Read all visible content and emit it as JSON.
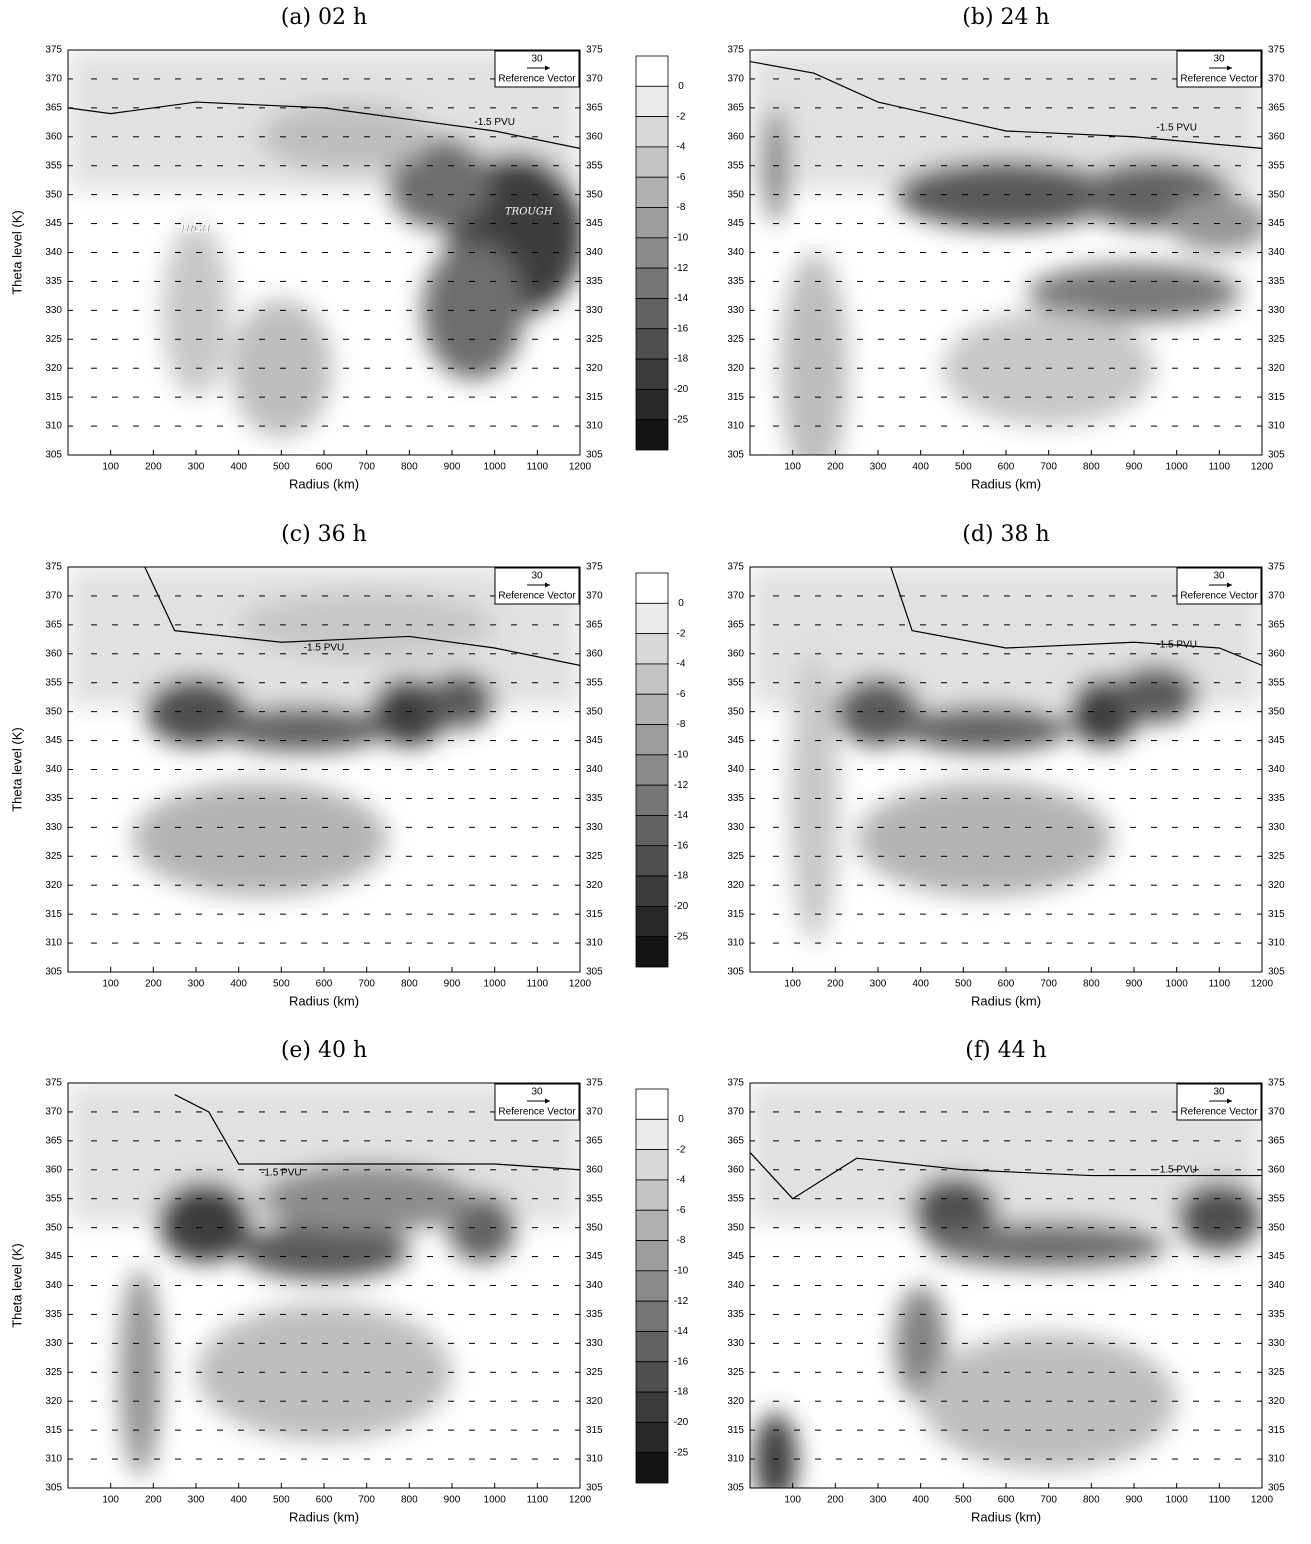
{
  "chart_data": [
    {
      "type": "contour",
      "title": "(a) 02 h",
      "xlabel": "Radius (km)",
      "ylabel": "Theta level (K)",
      "xlim": [
        0,
        1200
      ],
      "ylim": [
        305,
        375
      ],
      "xticks": [
        100,
        200,
        300,
        400,
        500,
        600,
        700,
        800,
        900,
        1000,
        1100,
        1200
      ],
      "yticks": [
        305,
        310,
        315,
        320,
        325,
        330,
        335,
        340,
        345,
        350,
        355,
        360,
        365,
        370,
        375
      ],
      "reference_vector": {
        "value": 30,
        "label": "Reference Vector"
      },
      "annotations": [
        "-1.5 PVU",
        "HIGH",
        "TROUGH"
      ],
      "colorbar": [
        0,
        -2,
        -4,
        -6,
        -8,
        -10,
        -12,
        -14,
        -16,
        -18,
        -20,
        -25
      ]
    },
    {
      "type": "contour",
      "title": "(b) 24 h",
      "xlabel": "Radius (km)",
      "xlim": [
        0,
        1200
      ],
      "ylim": [
        305,
        375
      ],
      "xticks": [
        100,
        200,
        300,
        400,
        500,
        600,
        700,
        800,
        900,
        1000,
        1100,
        1200
      ],
      "yticks": [
        305,
        310,
        315,
        320,
        325,
        330,
        335,
        340,
        345,
        350,
        355,
        360,
        365,
        370,
        375
      ],
      "reference_vector": {
        "value": 30,
        "label": "Reference Vector"
      },
      "annotations": [
        "-1.5 PVU"
      ]
    },
    {
      "type": "contour",
      "title": "(c) 36 h",
      "xlabel": "Radius (km)",
      "ylabel": "Theta level (K)",
      "xlim": [
        0,
        1200
      ],
      "ylim": [
        305,
        375
      ],
      "xticks": [
        100,
        200,
        300,
        400,
        500,
        600,
        700,
        800,
        900,
        1000,
        1100,
        1200
      ],
      "yticks": [
        305,
        310,
        315,
        320,
        325,
        330,
        335,
        340,
        345,
        350,
        355,
        360,
        365,
        370,
        375
      ],
      "reference_vector": {
        "value": 30,
        "label": "Reference Vector"
      },
      "annotations": [
        "-1.5 PVU"
      ],
      "colorbar": [
        0,
        -2,
        -4,
        -6,
        -8,
        -10,
        -12,
        -14,
        -16,
        -18,
        -20,
        -25
      ]
    },
    {
      "type": "contour",
      "title": "(d) 38 h",
      "xlabel": "Radius (km)",
      "xlim": [
        0,
        1200
      ],
      "ylim": [
        305,
        375
      ],
      "xticks": [
        100,
        200,
        300,
        400,
        500,
        600,
        700,
        800,
        900,
        1000,
        1100,
        1200
      ],
      "yticks": [
        305,
        310,
        315,
        320,
        325,
        330,
        335,
        340,
        345,
        350,
        355,
        360,
        365,
        370,
        375
      ],
      "reference_vector": {
        "value": 30,
        "label": "Reference Vector"
      },
      "annotations": [
        "-1.5 PVU"
      ]
    },
    {
      "type": "contour",
      "title": "(e) 40 h",
      "xlabel": "Radius (km)",
      "ylabel": "Theta level (K)",
      "xlim": [
        0,
        1200
      ],
      "ylim": [
        305,
        375
      ],
      "xticks": [
        100,
        200,
        300,
        400,
        500,
        600,
        700,
        800,
        900,
        1000,
        1100,
        1200
      ],
      "yticks": [
        305,
        310,
        315,
        320,
        325,
        330,
        335,
        340,
        345,
        350,
        355,
        360,
        365,
        370,
        375
      ],
      "reference_vector": {
        "value": 30,
        "label": "Reference Vector"
      },
      "annotations": [
        "-1.5 PVU"
      ],
      "colorbar": [
        0,
        -2,
        -4,
        -6,
        -8,
        -10,
        -12,
        -14,
        -16,
        -18,
        -20,
        -25
      ]
    },
    {
      "type": "contour",
      "title": "(f) 44 h",
      "xlabel": "Radius (km)",
      "xlim": [
        0,
        1200
      ],
      "ylim": [
        305,
        375
      ],
      "xticks": [
        100,
        200,
        300,
        400,
        500,
        600,
        700,
        800,
        900,
        1000,
        1100,
        1200
      ],
      "yticks": [
        305,
        310,
        315,
        320,
        325,
        330,
        335,
        340,
        345,
        350,
        355,
        360,
        365,
        370,
        375
      ],
      "reference_vector": {
        "value": 30,
        "label": "Reference Vector"
      },
      "annotations": [
        "-1.5 PVU"
      ]
    }
  ]
}
